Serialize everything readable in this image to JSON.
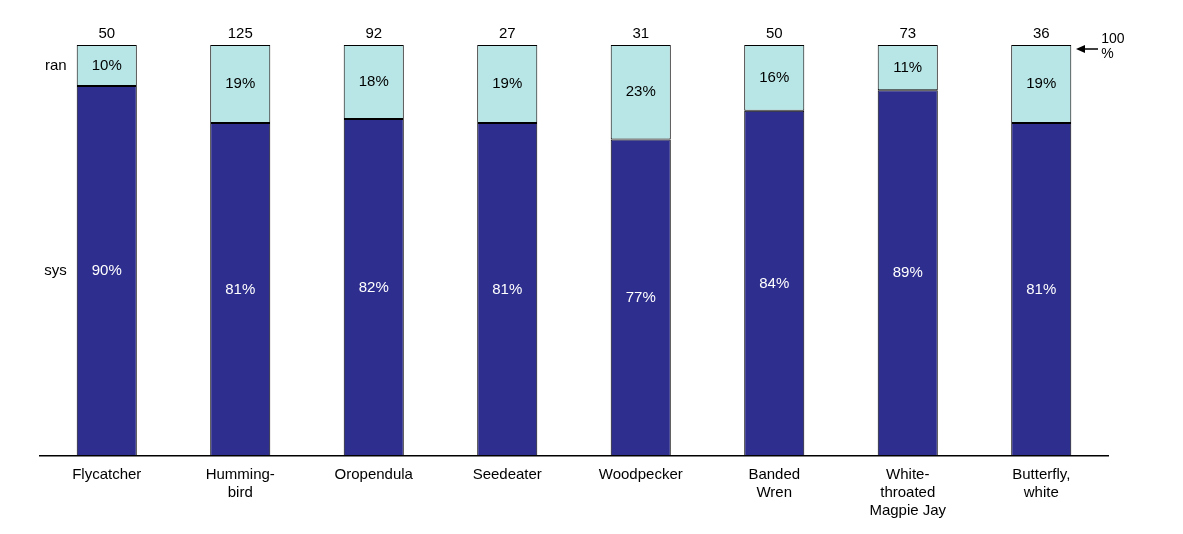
{
  "chart_data": {
    "type": "bar",
    "stacked": true,
    "categories": [
      "Flycatcher",
      "Humming-\nbird",
      "Oropendula",
      "Seedeater",
      "Woodpecker",
      "Banded\nWren",
      "White-\nthroated\nMagpie Jay",
      "Butterfly,\nwhite"
    ],
    "series": [
      {
        "name": "sys",
        "color": "#2e2e8e",
        "values": [
          90,
          81,
          82,
          81,
          77,
          84,
          89,
          81
        ],
        "value_labels": [
          "90%",
          "81%",
          "82%",
          "81%",
          "77%",
          "84%",
          "89%",
          "81%"
        ]
      },
      {
        "name": "ran",
        "color": "#b8e6e6",
        "values": [
          10,
          19,
          18,
          19,
          23,
          16,
          11,
          19
        ],
        "value_labels": [
          "10%",
          "19%",
          "18%",
          "19%",
          "23%",
          "16%",
          "11%",
          "19%"
        ]
      }
    ],
    "ylim": [
      0,
      100
    ],
    "grid": false,
    "legend": false,
    "annotations": [
      {
        "text": "50",
        "x": "Flycatcher",
        "y": 100
      },
      {
        "text": "125",
        "x": "Humming-\nbird",
        "y": 100
      },
      {
        "text": "92",
        "x": "Oropendula",
        "y": 100
      },
      {
        "text": "27",
        "x": "Seedeater",
        "y": 100
      },
      {
        "text": "31",
        "x": "Woodpecker",
        "y": 100
      },
      {
        "text": "50",
        "x": "Banded\nWren",
        "y": 100
      },
      {
        "text": "73",
        "x": "White-\nthroated\nMagpie Jay",
        "y": 100
      },
      {
        "text": "36",
        "x": "Butterfly,\nwhite",
        "y": 100
      },
      "100 %"
    ]
  }
}
